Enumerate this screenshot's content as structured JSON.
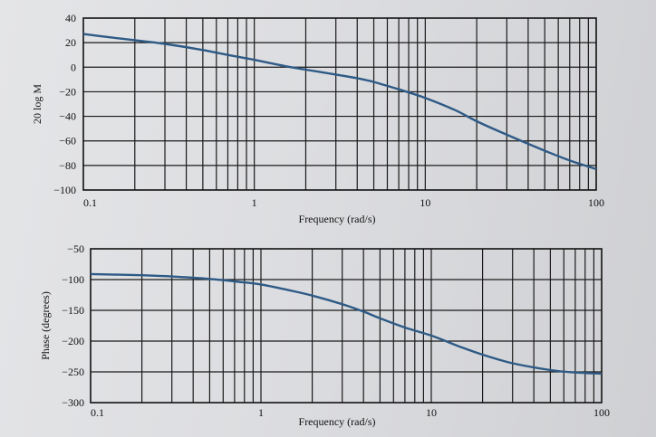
{
  "chart_data": [
    {
      "type": "line",
      "xscale": "log",
      "xlim": [
        0.1,
        100
      ],
      "ylim": [
        -100,
        40
      ],
      "xlabel": "Frequency (rad/s)",
      "ylabel": "20 log M",
      "xticks": [
        "0.1",
        "1",
        "10",
        "100"
      ],
      "yticks": [
        "40",
        "20",
        "0",
        "−20",
        "−40",
        "−60",
        "−80",
        "−100"
      ],
      "grid": true,
      "series": [
        {
          "color": "#2e5a86",
          "x": [
            0.1,
            0.15,
            0.2,
            0.3,
            0.5,
            0.7,
            1,
            1.5,
            2,
            3,
            4,
            5,
            7,
            10,
            15,
            20,
            30,
            50,
            70,
            100
          ],
          "y": [
            27,
            24,
            22,
            19,
            14,
            10,
            6,
            1,
            -2,
            -6,
            -9,
            -12,
            -18,
            -25,
            -35,
            -44,
            -55,
            -68,
            -76,
            -83
          ]
        }
      ]
    },
    {
      "type": "line",
      "xscale": "log",
      "xlim": [
        0.1,
        100
      ],
      "ylim": [
        -300,
        -50
      ],
      "xlabel": "Frequency (rad/s)",
      "ylabel": "Phase (degrees)",
      "xticks": [
        "0.1",
        "1",
        "10",
        "100"
      ],
      "yticks": [
        "−50",
        "−100",
        "−150",
        "−200",
        "−250",
        "−300"
      ],
      "grid": true,
      "series": [
        {
          "color": "#2e5a86",
          "x": [
            0.1,
            0.2,
            0.3,
            0.5,
            0.7,
            1,
            1.5,
            2,
            3,
            4,
            5,
            7,
            10,
            15,
            20,
            30,
            50,
            70,
            100
          ],
          "y": [
            -91,
            -93,
            -95,
            -99,
            -103,
            -108,
            -118,
            -126,
            -140,
            -152,
            -163,
            -178,
            -191,
            -210,
            -222,
            -236,
            -247,
            -251,
            -253
          ]
        }
      ]
    }
  ]
}
